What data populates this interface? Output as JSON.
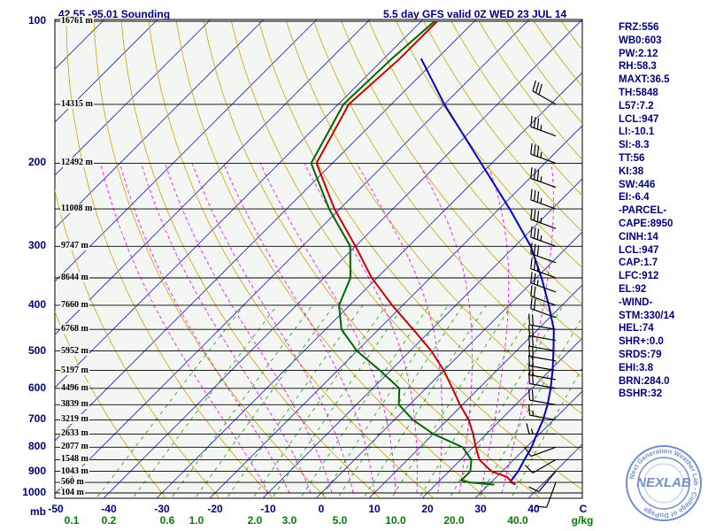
{
  "header": {
    "location": "42.55,-95.01 Sounding",
    "model_run": "5.5 day  GFS valid 0Z WED 23 JUL 14"
  },
  "indices": [
    "FRZ:556",
    "WB0:603",
    "PW:2.12",
    "RH:58.3",
    "MAXT:36.5",
    "TH:5848",
    "L57:7.2",
    "LCL:947",
    "LI:-10.1",
    "SI:-8.3",
    "TT:56",
    "KI:38",
    "SW:446",
    "EI:-6.4",
    "-PARCEL-",
    "CAPE:8950",
    "CINH:14",
    "LCL:947",
    "CAP:1.7",
    "LFC:912",
    "EL:92",
    "-WIND-",
    "STM:330/14",
    "HEL:74",
    "SHR+:0.0",
    "SRDS:79",
    "EHI:3.8",
    "BRN:284.0",
    "BSHR:32"
  ],
  "axis": {
    "pressure_unit": "mb",
    "temp_unit": "C",
    "mixing_unit": "g/kg"
  },
  "badge": {
    "logo_text": "NEXLAB",
    "ring_text": "Next Generation Weather Lab - College of DuPage"
  },
  "colors": {
    "isobar": "#000000",
    "isotherm": "#1f1fb4",
    "dry_adiabat": "#c8a600",
    "moist_adiabat": "#ff00ff",
    "mixing_ratio": "#00aa00",
    "temperature": "#cc0000",
    "dewpoint": "#006600",
    "parcel": "#0000cc",
    "wind_barb": "#000000",
    "label_text": "#000080"
  },
  "chart_data": {
    "type": "skew-t",
    "title": "5.5 day  GFS valid 0Z WED 23 JUL 14",
    "pressure_levels": [
      {
        "p": 100,
        "height": "16761 m"
      },
      {
        "p": 150,
        "height": "14315 m"
      },
      {
        "p": 200,
        "height": "12492 m"
      },
      {
        "p": 250,
        "height": "11008 m"
      },
      {
        "p": 300,
        "height": "9747 m"
      },
      {
        "p": 350,
        "height": "8644 m"
      },
      {
        "p": 400,
        "height": "7660 m"
      },
      {
        "p": 450,
        "height": "6768 m"
      },
      {
        "p": 500,
        "height": "5952 m"
      },
      {
        "p": 550,
        "height": "5197 m"
      },
      {
        "p": 600,
        "height": "4496 m"
      },
      {
        "p": 650,
        "height": "3839 m"
      },
      {
        "p": 700,
        "height": "3219 m"
      },
      {
        "p": 750,
        "height": "2633 m"
      },
      {
        "p": 800,
        "height": "2077 m"
      },
      {
        "p": 850,
        "height": "1548 m"
      },
      {
        "p": 900,
        "height": "1043 m"
      },
      {
        "p": 950,
        "height": "560 m"
      },
      {
        "p": 1000,
        "height": "104 m"
      }
    ],
    "pressure_tick_labels": [
      100,
      200,
      300,
      400,
      500,
      600,
      700,
      800,
      900,
      1000
    ],
    "temperature_ticks": [
      -50,
      -40,
      -30,
      -20,
      -10,
      0,
      10,
      20,
      30,
      40
    ],
    "mixing_ratio_ticks": [
      {
        "label": "0.1",
        "t": -47
      },
      {
        "label": "0.2",
        "t": -40
      },
      {
        "label": "0.6",
        "t": -29
      },
      {
        "label": "1.0",
        "t": -23.5
      },
      {
        "label": "2.0",
        "t": -12.5
      },
      {
        "label": "3.0",
        "t": -6
      },
      {
        "label": "5.0",
        "t": 3.5
      },
      {
        "label": "10.0",
        "t": 14
      },
      {
        "label": "20.0",
        "t": 25
      },
      {
        "label": "40.0",
        "t": 37
      }
    ],
    "temperature_profile": [
      {
        "p": 100,
        "t": -67
      },
      {
        "p": 120,
        "t": -67
      },
      {
        "p": 150,
        "t": -68
      },
      {
        "p": 200,
        "t": -63
      },
      {
        "p": 250,
        "t": -51
      },
      {
        "p": 300,
        "t": -40
      },
      {
        "p": 350,
        "t": -31
      },
      {
        "p": 400,
        "t": -22
      },
      {
        "p": 450,
        "t": -13.5
      },
      {
        "p": 500,
        "t": -6
      },
      {
        "p": 550,
        "t": 0
      },
      {
        "p": 600,
        "t": 5
      },
      {
        "p": 650,
        "t": 9.5
      },
      {
        "p": 700,
        "t": 14
      },
      {
        "p": 750,
        "t": 17.5
      },
      {
        "p": 800,
        "t": 20.5
      },
      {
        "p": 850,
        "t": 23.5
      },
      {
        "p": 900,
        "t": 28
      },
      {
        "p": 925,
        "t": 32
      },
      {
        "p": 950,
        "t": 34
      },
      {
        "p": 960,
        "t": 35
      }
    ],
    "dewpoint_profile": [
      {
        "p": 100,
        "t": -67.5
      },
      {
        "p": 120,
        "t": -68.5
      },
      {
        "p": 150,
        "t": -69
      },
      {
        "p": 200,
        "t": -64
      },
      {
        "p": 250,
        "t": -52
      },
      {
        "p": 300,
        "t": -41
      },
      {
        "p": 350,
        "t": -35
      },
      {
        "p": 400,
        "t": -32
      },
      {
        "p": 450,
        "t": -27
      },
      {
        "p": 500,
        "t": -20
      },
      {
        "p": 550,
        "t": -12
      },
      {
        "p": 600,
        "t": -5
      },
      {
        "p": 650,
        "t": -2
      },
      {
        "p": 700,
        "t": 3.5
      },
      {
        "p": 750,
        "t": 10
      },
      {
        "p": 800,
        "t": 18
      },
      {
        "p": 850,
        "t": 22
      },
      {
        "p": 900,
        "t": 24
      },
      {
        "p": 940,
        "t": 24
      },
      {
        "p": 950,
        "t": 26
      },
      {
        "p": 960,
        "t": 31
      }
    ],
    "parcel_profile": [
      {
        "p": 120,
        "t": -63
      },
      {
        "p": 150,
        "t": -50
      },
      {
        "p": 200,
        "t": -32
      },
      {
        "p": 250,
        "t": -18
      },
      {
        "p": 300,
        "t": -7
      },
      {
        "p": 350,
        "t": 1
      },
      {
        "p": 400,
        "t": 7.5
      },
      {
        "p": 450,
        "t": 13
      },
      {
        "p": 500,
        "t": 17
      },
      {
        "p": 550,
        "t": 20.5
      },
      {
        "p": 600,
        "t": 23.5
      },
      {
        "p": 650,
        "t": 26
      },
      {
        "p": 700,
        "t": 28
      },
      {
        "p": 750,
        "t": 29.5
      },
      {
        "p": 800,
        "t": 31
      },
      {
        "p": 850,
        "t": 32
      },
      {
        "p": 900,
        "t": 33
      },
      {
        "p": 947,
        "t": 33.5
      },
      {
        "p": 960,
        "t": 35
      }
    ],
    "wind_barbs": [
      {
        "p": 150,
        "dir": 300,
        "spd": 30
      },
      {
        "p": 175,
        "dir": 290,
        "spd": 35
      },
      {
        "p": 200,
        "dir": 290,
        "spd": 35
      },
      {
        "p": 225,
        "dir": 290,
        "spd": 35
      },
      {
        "p": 250,
        "dir": 290,
        "spd": 35
      },
      {
        "p": 275,
        "dir": 290,
        "spd": 35
      },
      {
        "p": 300,
        "dir": 290,
        "spd": 35
      },
      {
        "p": 325,
        "dir": 290,
        "spd": 30
      },
      {
        "p": 350,
        "dir": 290,
        "spd": 25
      },
      {
        "p": 375,
        "dir": 290,
        "spd": 25
      },
      {
        "p": 400,
        "dir": 290,
        "spd": 20
      },
      {
        "p": 425,
        "dir": 290,
        "spd": 20
      },
      {
        "p": 450,
        "dir": 280,
        "spd": 20
      },
      {
        "p": 475,
        "dir": 280,
        "spd": 20
      },
      {
        "p": 500,
        "dir": 280,
        "spd": 20
      },
      {
        "p": 525,
        "dir": 280,
        "spd": 20
      },
      {
        "p": 550,
        "dir": 280,
        "spd": 20
      },
      {
        "p": 575,
        "dir": 280,
        "spd": 20
      },
      {
        "p": 600,
        "dir": 280,
        "spd": 20
      },
      {
        "p": 650,
        "dir": 280,
        "spd": 20
      },
      {
        "p": 700,
        "dir": 280,
        "spd": 15
      },
      {
        "p": 750,
        "dir": 270,
        "spd": 15
      },
      {
        "p": 800,
        "dir": 250,
        "spd": 10
      },
      {
        "p": 850,
        "dir": 240,
        "spd": 10
      },
      {
        "p": 900,
        "dir": 220,
        "spd": 10
      },
      {
        "p": 950,
        "dir": 200,
        "spd": 10
      }
    ],
    "xlim": [
      -50,
      50
    ],
    "ylim": [
      1050,
      100
    ],
    "y_scale": "log",
    "skew": "45 degrees"
  }
}
